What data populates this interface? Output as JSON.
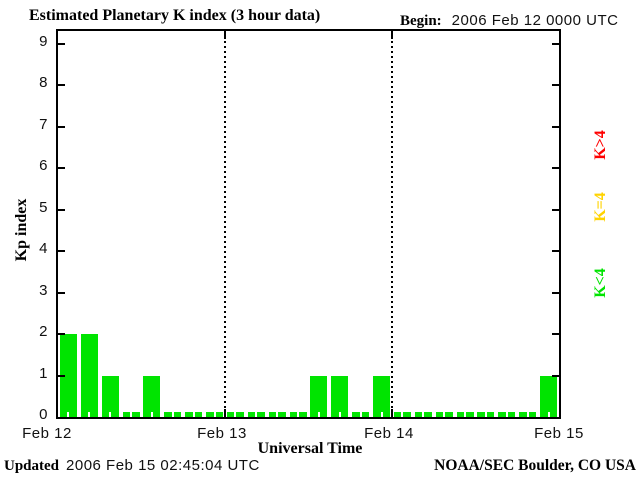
{
  "header": {
    "title": "Estimated Planetary K index (3 hour data)",
    "begin_label": "Begin:",
    "begin_value": "2006 Feb 12 0000 UTC"
  },
  "axes": {
    "ylabel": "Kp index",
    "xlabel": "Universal Time",
    "y_tick_labels": [
      "0",
      "1",
      "2",
      "3",
      "4",
      "5",
      "6",
      "7",
      "8",
      "9"
    ],
    "x_tick_labels": [
      "Feb 12",
      "Feb 13",
      "Feb 14",
      "Feb 15"
    ]
  },
  "legend": {
    "items": [
      {
        "label": "K>4",
        "color": "#ff0000"
      },
      {
        "label": "K=4",
        "color": "#ffd300"
      },
      {
        "label": "K<4",
        "color": "#00e400"
      }
    ]
  },
  "footer": {
    "updated_label": "Updated",
    "updated_value": "2006 Feb 15 02:45:04 UTC",
    "credit": "NOAA/SEC Boulder, CO USA"
  },
  "chart_data": {
    "type": "bar",
    "title": "Estimated Planetary K index (3 hour data)",
    "begin": "2006 Feb 12 0000 UTC",
    "xlabel": "Universal Time",
    "ylabel": "Kp index",
    "ylim": [
      0,
      9
    ],
    "interval_hours": 3,
    "x_tick_labels": [
      "Feb 12",
      "Feb 13",
      "Feb 14",
      "Feb 15"
    ],
    "grid": "dotted vertical lines at day boundaries",
    "legend_position": "right, rotated 90deg",
    "days": [
      {
        "date": "2006 Feb 12",
        "kp": [
          2,
          2,
          1,
          0,
          1,
          0,
          0,
          0
        ]
      },
      {
        "date": "2006 Feb 13",
        "kp": [
          0,
          0,
          0,
          0,
          1,
          1,
          0,
          1
        ]
      },
      {
        "date": "2006 Feb 14",
        "kp": [
          0,
          0,
          0,
          0,
          0,
          0,
          0,
          1
        ]
      }
    ],
    "values": [
      2,
      2,
      1,
      0,
      1,
      0,
      0,
      0,
      0,
      0,
      0,
      0,
      1,
      1,
      0,
      1,
      0,
      0,
      0,
      0,
      0,
      0,
      0,
      1
    ],
    "color_rules": {
      "below_4": "#00e400",
      "equal_4": "#ffd300",
      "above_4": "#ff0000"
    }
  }
}
